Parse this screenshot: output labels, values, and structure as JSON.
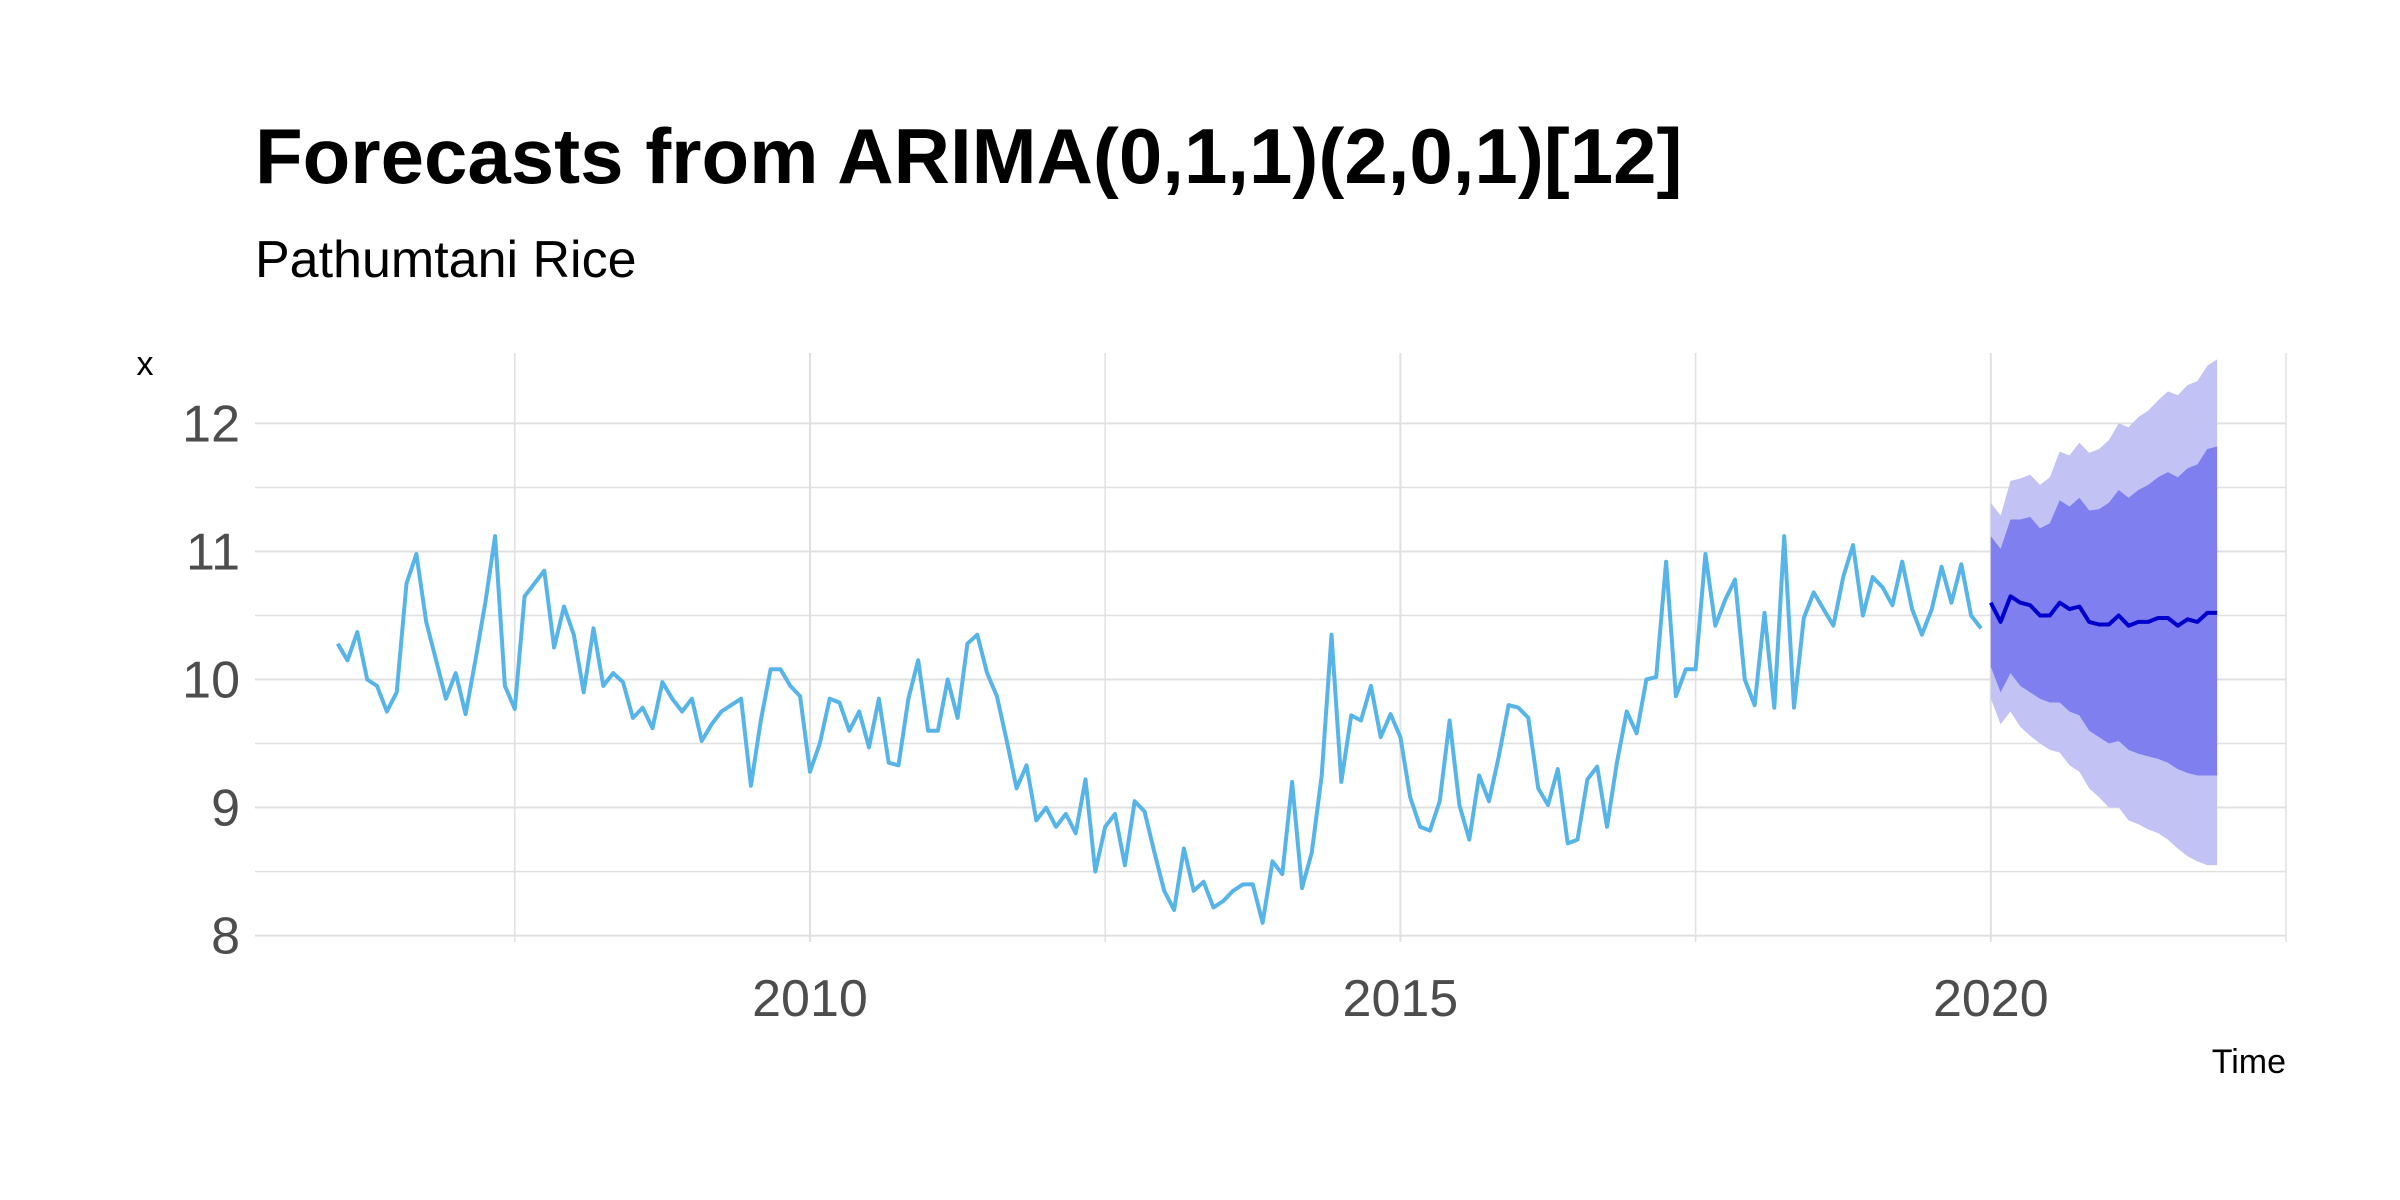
{
  "chart_data": {
    "type": "line",
    "title": "Forecasts from ARIMA(0,1,1)(2,0,1)[12]",
    "subtitle": "Pathumtani Rice",
    "xlabel": "Time",
    "ylabel": "x",
    "xlim": [
      2005.3,
      2022.5
    ],
    "ylim": [
      7.95,
      12.55
    ],
    "x_ticks": [
      2010,
      2015,
      2020
    ],
    "x_tick_labels": [
      "2010",
      "2015",
      "2020"
    ],
    "y_ticks": [
      8,
      9,
      10,
      11,
      12
    ],
    "y_tick_labels": [
      "8",
      "9",
      "10",
      "11",
      "12"
    ],
    "grid": true,
    "legend": "none",
    "colors": {
      "history": "#56B4E9",
      "forecast": "#0000CC",
      "band80": "#7F7FEF",
      "band95": "#C2C2F5",
      "grid": "#E0E0E0"
    },
    "history": {
      "start": "2006-01",
      "frequency": 12,
      "values": [
        10.28,
        10.15,
        10.37,
        10.0,
        9.95,
        9.75,
        9.9,
        10.75,
        10.98,
        10.45,
        10.15,
        9.85,
        10.05,
        9.73,
        10.15,
        10.6,
        11.12,
        9.95,
        9.77,
        10.65,
        10.75,
        10.85,
        10.25,
        10.57,
        10.35,
        9.9,
        10.4,
        9.95,
        10.05,
        9.98,
        9.7,
        9.78,
        9.62,
        9.98,
        9.85,
        9.75,
        9.85,
        9.52,
        9.65,
        9.75,
        9.8,
        9.85,
        9.17,
        9.68,
        10.08,
        10.08,
        9.95,
        9.87,
        9.28,
        9.5,
        9.85,
        9.82,
        9.6,
        9.75,
        9.47,
        9.85,
        9.35,
        9.33,
        9.85,
        10.15,
        9.6,
        9.6,
        10.0,
        9.7,
        10.28,
        10.35,
        10.05,
        9.87,
        9.52,
        9.15,
        9.33,
        8.9,
        9.0,
        8.85,
        8.95,
        8.8,
        9.22,
        8.5,
        8.85,
        8.95,
        8.55,
        9.05,
        8.97,
        8.65,
        8.35,
        8.2,
        8.68,
        8.35,
        8.42,
        8.22,
        8.27,
        8.35,
        8.4,
        8.4,
        8.1,
        8.58,
        8.48,
        9.2,
        8.37,
        8.65,
        9.25,
        10.35,
        9.2,
        9.72,
        9.68,
        9.95,
        9.55,
        9.73,
        9.55,
        9.08,
        8.85,
        8.82,
        9.05,
        9.68,
        9.02,
        8.75,
        9.25,
        9.05,
        9.4,
        9.8,
        9.78,
        9.7,
        9.15,
        9.02,
        9.3,
        8.72,
        8.75,
        9.22,
        9.32,
        8.85,
        9.35,
        9.75,
        9.58,
        10.0,
        10.02,
        10.92,
        9.87,
        10.08,
        10.08,
        10.98,
        10.42,
        10.62,
        10.78,
        10.0,
        9.8,
        10.52,
        9.78,
        11.12,
        9.78,
        10.48,
        10.68,
        10.55,
        10.42,
        10.8,
        11.05,
        10.5,
        10.8,
        10.72,
        10.58,
        10.92,
        10.55,
        10.35,
        10.55,
        10.88,
        10.6,
        10.9,
        10.5,
        10.4
      ]
    },
    "forecast": {
      "start": "2020-01",
      "frequency": 12,
      "mean": [
        10.6,
        10.45,
        10.65,
        10.6,
        10.58,
        10.5,
        10.5,
        10.6,
        10.55,
        10.57,
        10.45,
        10.43,
        10.43,
        10.5,
        10.42,
        10.45,
        10.45,
        10.48,
        10.48,
        10.42,
        10.47,
        10.45,
        10.52,
        10.52
      ],
      "lo80": [
        10.1,
        9.9,
        10.05,
        9.95,
        9.9,
        9.85,
        9.82,
        9.82,
        9.75,
        9.72,
        9.6,
        9.55,
        9.5,
        9.52,
        9.45,
        9.42,
        9.4,
        9.38,
        9.35,
        9.3,
        9.27,
        9.25,
        9.25,
        9.25
      ],
      "hi80": [
        11.12,
        11.02,
        11.25,
        11.25,
        11.27,
        11.18,
        11.22,
        11.4,
        11.35,
        11.42,
        11.32,
        11.33,
        11.38,
        11.48,
        11.42,
        11.48,
        11.52,
        11.58,
        11.62,
        11.58,
        11.65,
        11.68,
        11.8,
        11.82
      ],
      "lo95": [
        9.85,
        9.65,
        9.75,
        9.63,
        9.56,
        9.5,
        9.45,
        9.43,
        9.33,
        9.28,
        9.15,
        9.08,
        9.0,
        9.0,
        8.9,
        8.87,
        8.83,
        8.8,
        8.75,
        8.68,
        8.62,
        8.58,
        8.55,
        8.55
      ],
      "hi95": [
        11.38,
        11.28,
        11.55,
        11.57,
        11.6,
        11.52,
        11.58,
        11.78,
        11.75,
        11.85,
        11.77,
        11.8,
        11.87,
        12.0,
        11.97,
        12.05,
        12.1,
        12.18,
        12.25,
        12.22,
        12.3,
        12.33,
        12.45,
        12.5
      ]
    }
  }
}
